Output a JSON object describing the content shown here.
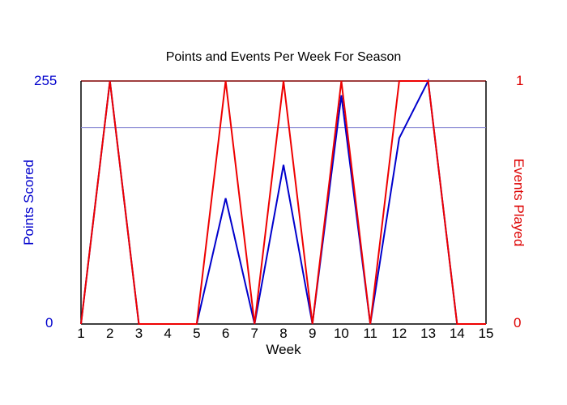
{
  "chart_data": {
    "type": "line",
    "title": "Points and Events Per Week For Season",
    "xlabel": "Week",
    "ylabel": "Points Scored",
    "ylabel_right": "Events Played",
    "x": [
      1,
      2,
      3,
      4,
      5,
      6,
      7,
      8,
      9,
      10,
      11,
      12,
      13,
      14,
      15
    ],
    "ylim": [
      0,
      255
    ],
    "ylim_right": [
      0,
      1
    ],
    "y_ticks_left": [
      "0",
      "255"
    ],
    "y_ticks_right": [
      "0",
      "1"
    ],
    "x_ticks": [
      "1",
      "2",
      "3",
      "4",
      "5",
      "6",
      "7",
      "8",
      "9",
      "10",
      "11",
      "12",
      "13",
      "14",
      "15"
    ],
    "grid": false,
    "reference_line": {
      "axis": "left",
      "value": 206,
      "color": "#8080d0"
    },
    "series": [
      {
        "name": "Points Scored",
        "axis": "left",
        "color": "#0000cc",
        "values": [
          0,
          255,
          0,
          0,
          0,
          132,
          0,
          167,
          0,
          240,
          0,
          195,
          255,
          0,
          0
        ]
      },
      {
        "name": "Events Played",
        "axis": "right",
        "color": "#ee0000",
        "values": [
          0,
          1,
          0,
          0,
          0,
          1,
          0,
          1,
          0,
          1,
          0,
          1,
          1,
          0,
          0
        ]
      }
    ]
  }
}
